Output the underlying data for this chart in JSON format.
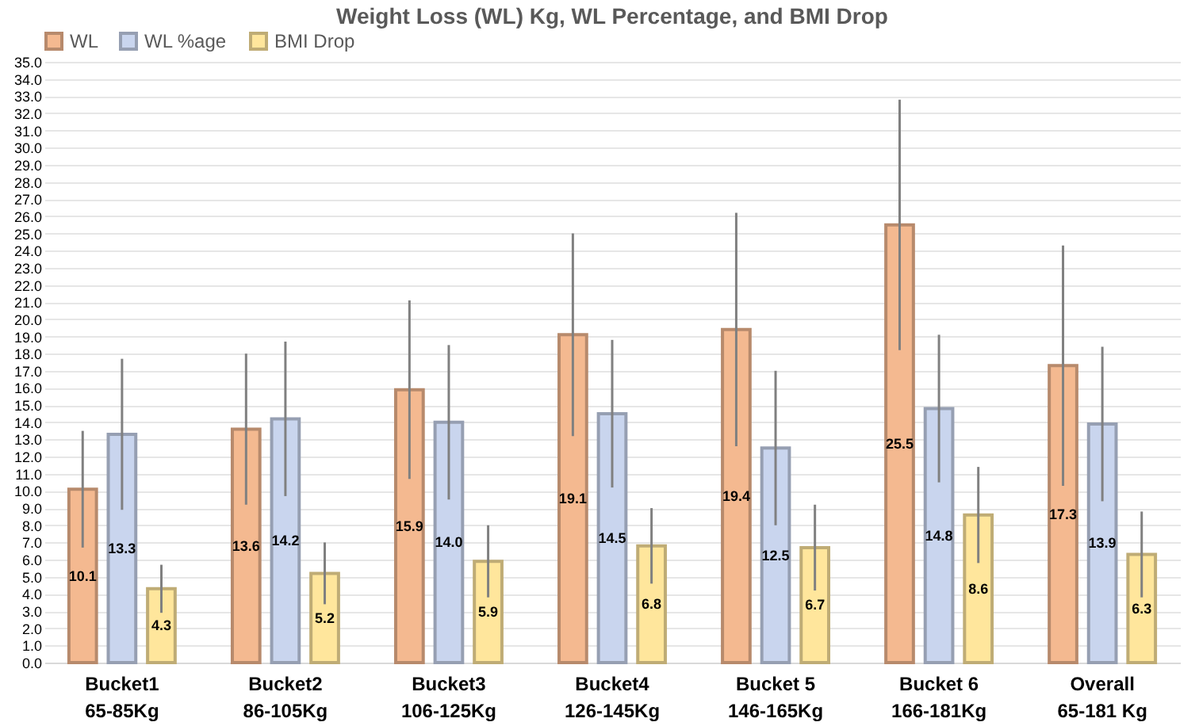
{
  "chart_data": {
    "type": "bar",
    "title": "Weight Loss (WL) Kg, WL Percentage, and BMI Drop",
    "categories": [
      "Bucket1\n65-85Kg",
      "Bucket2\n86-105Kg",
      "Bucket3\n106-125Kg",
      "Bucket4\n126-145Kg",
      "Bucket 5\n146-165Kg",
      "Bucket 6\n166-181Kg",
      "Overall\n65-181 Kg"
    ],
    "series": [
      {
        "name": "WL",
        "color": "#f4b990",
        "values": [
          10.1,
          13.6,
          15.9,
          19.1,
          19.4,
          25.5,
          17.3
        ],
        "value_labels": [
          "10.1",
          "13.6",
          "15.9",
          "19.1",
          "19.4",
          "25.5",
          "17.3"
        ],
        "errors": [
          3.4,
          4.4,
          5.2,
          5.9,
          6.8,
          7.3,
          7.0
        ]
      },
      {
        "name": "WL %age",
        "color": "#c9d5ee",
        "values": [
          13.3,
          14.2,
          14.0,
          14.5,
          12.5,
          14.8,
          13.9
        ],
        "value_labels": [
          "13.3",
          "14.2",
          "14.0",
          "14.5",
          "12.5",
          "14.8",
          "13.9"
        ],
        "errors": [
          4.4,
          4.5,
          4.5,
          4.3,
          4.5,
          4.3,
          4.5
        ]
      },
      {
        "name": "BMI Drop",
        "color": "#ffe69c",
        "values": [
          4.3,
          5.2,
          5.9,
          6.8,
          6.7,
          8.6,
          6.3
        ],
        "value_labels": [
          "4.3",
          "5.2",
          "5.9",
          "6.8",
          "6.7",
          "8.6",
          "6.3"
        ],
        "errors": [
          1.4,
          1.8,
          2.1,
          2.2,
          2.5,
          2.8,
          2.5
        ]
      }
    ],
    "ylim": [
      0,
      35
    ],
    "yticks": [
      {
        "value": 0,
        "label": "0.0"
      },
      {
        "value": 1,
        "label": "1.0"
      },
      {
        "value": 2,
        "label": "2.0"
      },
      {
        "value": 3,
        "label": "3.0"
      },
      {
        "value": 4,
        "label": "4.0"
      },
      {
        "value": 5,
        "label": "5.0"
      },
      {
        "value": 6,
        "label": "6.0"
      },
      {
        "value": 7,
        "label": "7.0"
      },
      {
        "value": 8,
        "label": "8.0"
      },
      {
        "value": 9,
        "label": "9.0"
      },
      {
        "value": 10,
        "label": "10.0"
      },
      {
        "value": 11,
        "label": "11.0"
      },
      {
        "value": 12,
        "label": "12.0"
      },
      {
        "value": 13,
        "label": "13.0"
      },
      {
        "value": 14,
        "label": "14.0"
      },
      {
        "value": 15,
        "label": "15.0"
      },
      {
        "value": 16,
        "label": "16.0"
      },
      {
        "value": 17,
        "label": "17.0"
      },
      {
        "value": 18,
        "label": "18.0"
      },
      {
        "value": 19,
        "label": "19.0"
      },
      {
        "value": 20,
        "label": "20.0"
      },
      {
        "value": 21,
        "label": "21.0"
      },
      {
        "value": 22,
        "label": "22.0"
      },
      {
        "value": 23,
        "label": "23.0"
      },
      {
        "value": 24,
        "label": "24.0"
      },
      {
        "value": 25,
        "label": "25.0"
      },
      {
        "value": 26,
        "label": "26.0"
      },
      {
        "value": 27,
        "label": "27.0"
      },
      {
        "value": 28,
        "label": "28.0"
      },
      {
        "value": 29,
        "label": "29.0"
      },
      {
        "value": 30,
        "label": "30.0"
      },
      {
        "value": 31,
        "label": "31.0"
      },
      {
        "value": 32,
        "label": "32.0"
      },
      {
        "value": 33,
        "label": "33.0"
      },
      {
        "value": 34,
        "label": "34.0"
      },
      {
        "value": 35,
        "label": "35.0"
      }
    ],
    "grid": "y",
    "legend": "top"
  }
}
